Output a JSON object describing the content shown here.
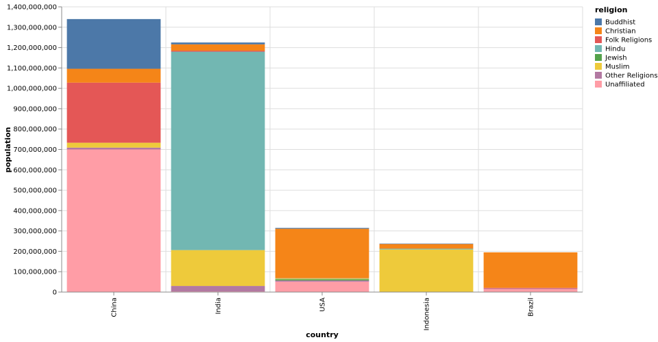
{
  "chart_data": {
    "type": "bar",
    "stacked": true,
    "xlabel": "country",
    "ylabel": "population",
    "ylim": [
      0,
      1400000000
    ],
    "ytick_step": 100000000,
    "grid": true,
    "legend_title": "religion",
    "legend_position": "right",
    "categories": [
      "China",
      "India",
      "USA",
      "Indonesia",
      "Brazil"
    ],
    "series": [
      {
        "name": "Unaffiliated",
        "color": "#ff9da6",
        "values": [
          700000000,
          3000000,
          51000000,
          0,
          15000000
        ]
      },
      {
        "name": "Other Religions",
        "color": "#b279a2",
        "values": [
          9000000,
          27000000,
          6000000,
          0,
          3000000
        ]
      },
      {
        "name": "Jewish",
        "color": "#54a24b",
        "values": [
          0,
          0,
          6000000,
          0,
          0
        ]
      },
      {
        "name": "Muslim",
        "color": "#eeca3b",
        "values": [
          24000000,
          176000000,
          3000000,
          209000000,
          0
        ]
      },
      {
        "name": "Hindu",
        "color": "#72b7b2",
        "values": [
          0,
          974000000,
          2000000,
          4000000,
          0
        ]
      },
      {
        "name": "Folk Religions",
        "color": "#e45756",
        "values": [
          295000000,
          5000000,
          0,
          0,
          3000000
        ]
      },
      {
        "name": "Christian",
        "color": "#f58518",
        "values": [
          68000000,
          31000000,
          243000000,
          23000000,
          174000000
        ]
      },
      {
        "name": "Buddhist",
        "color": "#4c78a8",
        "values": [
          244000000,
          9000000,
          4000000,
          2000000,
          0
        ]
      }
    ],
    "legend_order": [
      "Buddhist",
      "Christian",
      "Folk Religions",
      "Hindu",
      "Jewish",
      "Muslim",
      "Other Religions",
      "Unaffiliated"
    ]
  }
}
